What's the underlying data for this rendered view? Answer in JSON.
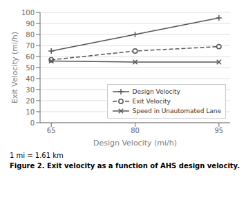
{
  "chart_data": {
    "type": "line",
    "xlabel": "Design Velocity (mi/h)",
    "ylabel": "Exit Velocity (mi/h)",
    "x": [
      65,
      80,
      95
    ],
    "series": [
      {
        "name": "Design Velocity",
        "color": "#555555",
        "values": [
          65,
          80,
          95
        ],
        "marker": "plus",
        "line_style": "solid"
      },
      {
        "name": "Exit Velocity",
        "color": "#555555",
        "values": [
          57,
          65,
          69
        ],
        "marker": "circle",
        "line_style": "dashed"
      },
      {
        "name": "Speed in Unautomated Lane",
        "color": "#555555",
        "values": [
          56,
          55,
          55
        ],
        "marker": "x",
        "line_style": "solid"
      }
    ],
    "xlim": [
      63,
      97
    ],
    "xticks": [
      65,
      80,
      95
    ],
    "ylim": [
      0,
      100
    ],
    "yticks": [
      0,
      10,
      20,
      30,
      40,
      50,
      60,
      70,
      80,
      90,
      100
    ],
    "grid": "y",
    "legend": "lower right",
    "annotations": [
      "1 mi = 1.61 km"
    ],
    "caption": "Figure 2. Exit velocity as a function of AHS design velocity."
  }
}
